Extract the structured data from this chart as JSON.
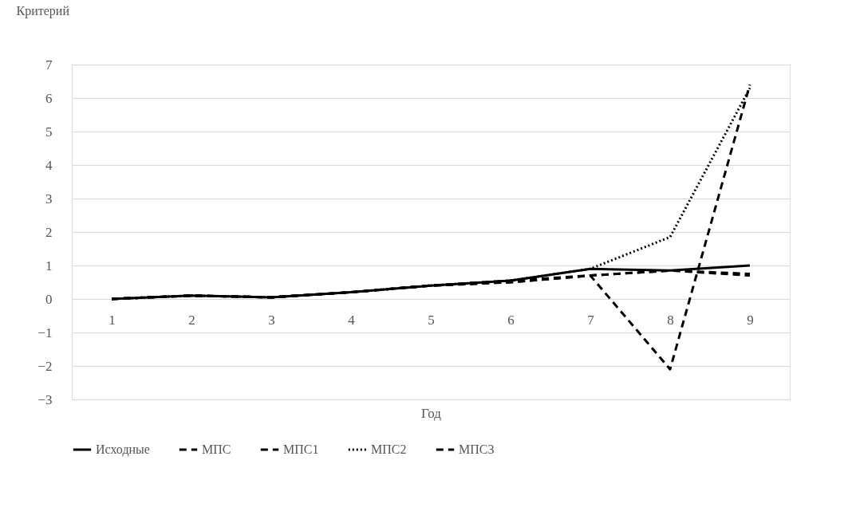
{
  "chart_data": {
    "type": "line",
    "ylabel": "Критерий",
    "xlabel": "Год",
    "categories": [
      "1",
      "2",
      "3",
      "4",
      "5",
      "6",
      "7",
      "8",
      "9"
    ],
    "series": [
      {
        "name": "Исходные",
        "color": "#000000",
        "line_style": "solid",
        "values": [
          0,
          0.1,
          0.05,
          0.2,
          0.4,
          0.55,
          0.9,
          0.85,
          1.0
        ]
      },
      {
        "name": "МПС",
        "color": "#000000",
        "line_style": "dashed",
        "values": [
          0,
          0.1,
          0.05,
          0.2,
          0.4,
          0.5,
          0.7,
          0.85,
          0.75
        ]
      },
      {
        "name": "МПС1",
        "color": "#000000",
        "line_style": "dashed",
        "values": [
          0,
          0.1,
          0.05,
          0.2,
          0.4,
          0.55,
          0.7,
          0.85,
          0.7
        ]
      },
      {
        "name": "МПС2",
        "color": "#000000",
        "line_style": "dotted",
        "values": [
          0,
          0.1,
          0.05,
          0.2,
          0.4,
          0.55,
          0.9,
          1.85,
          6.3
        ]
      },
      {
        "name": "МПС3",
        "color": "#000000",
        "line_style": "dashed",
        "values": [
          0,
          0.1,
          0.05,
          0.2,
          0.4,
          0.5,
          0.7,
          -2.1,
          6.4
        ]
      }
    ],
    "ylim": [
      -3,
      7
    ],
    "yticks": [
      -3,
      -2,
      -1,
      0,
      1,
      2,
      3,
      4,
      5,
      6,
      7
    ],
    "grid": "y",
    "legend": "bottom",
    "marker": "none"
  }
}
